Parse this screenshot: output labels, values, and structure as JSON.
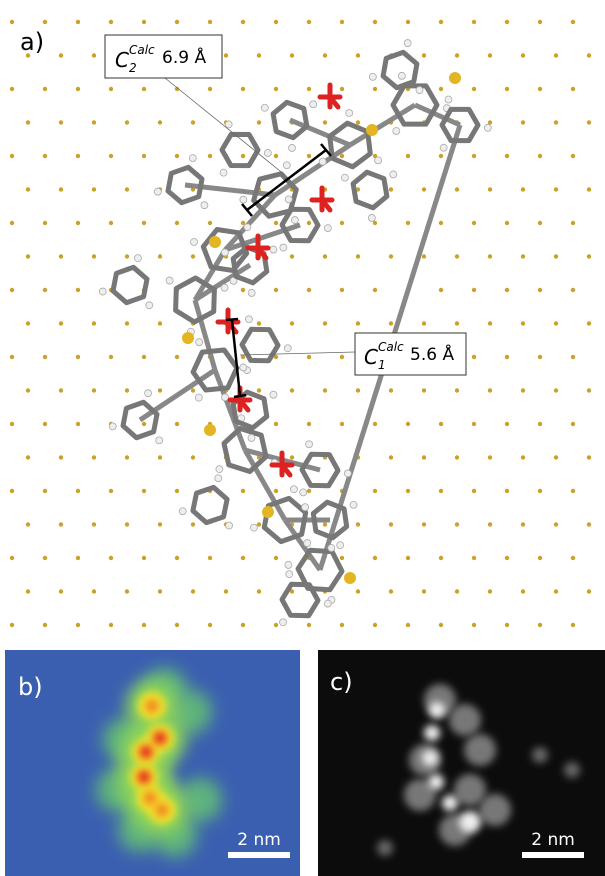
{
  "panels": [
    {
      "label": "a)",
      "annotations": [
        {
          "symbol": "C",
          "subscript": "2",
          "superscript": "Calc",
          "distance": "6.9 Å"
        },
        {
          "symbol": "C",
          "subscript": "1",
          "superscript": "Calc",
          "distance": "5.6 Å"
        }
      ]
    },
    {
      "label": "b)",
      "scale_bar": "2 nm"
    },
    {
      "label": "c)",
      "scale_bar": "2 nm"
    }
  ]
}
